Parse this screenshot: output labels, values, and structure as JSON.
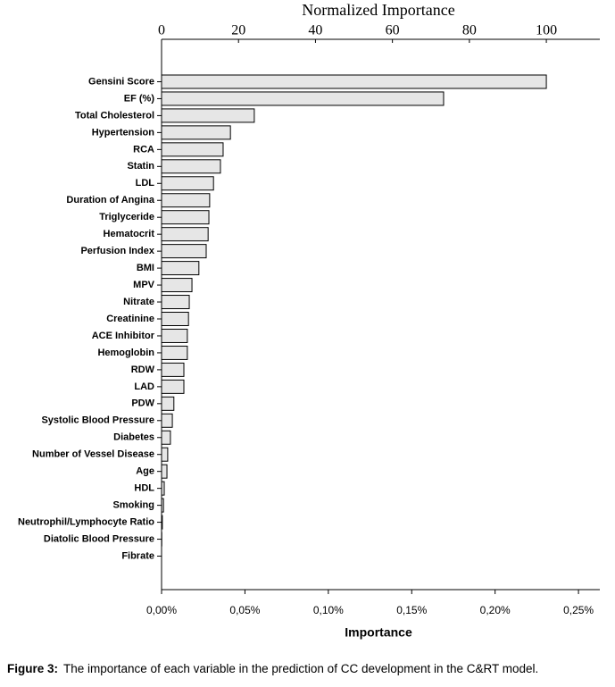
{
  "chart_data": {
    "type": "barh",
    "title": "Normalized Importance",
    "xlabel2": "Importance",
    "categories": [
      "Gensini Score",
      "EF (%)",
      "Total Cholesterol",
      "Hypertension",
      "RCA",
      "Statin",
      "LDL",
      "Duration of Angina",
      "Triglyceride",
      "Hematocrit",
      "Perfusion Index",
      "BMI",
      "MPV",
      "Nitrate",
      "Creatinine",
      "ACE Inhibitor",
      "Hemoglobin",
      "RDW",
      "LAD",
      "PDW",
      "Systolic Blood Pressure",
      "Diabetes",
      "Number of Vessel Disease",
      "Age",
      "HDL",
      "Smoking",
      "Neutrophil/Lymphocyte Ratio",
      "Diatolic Blood Pressure",
      "Fibrate"
    ],
    "values": [
      100,
      73.3,
      24.1,
      17.9,
      16.0,
      15.3,
      13.5,
      12.5,
      12.3,
      12.1,
      11.6,
      9.7,
      7.9,
      7.2,
      7.0,
      6.7,
      6.7,
      5.8,
      5.8,
      3.2,
      2.8,
      2.3,
      1.6,
      1.4,
      0.7,
      0.5,
      0.2,
      0.05,
      0
    ],
    "color": "#e6e6e6",
    "xlim": [
      0,
      113.9
    ],
    "xticks": [
      0,
      20,
      40,
      60,
      80,
      100
    ],
    "x2lim": [
      0,
      0.2628
    ],
    "x2ticks": [
      {
        "value": 0,
        "label": "0,00%"
      },
      {
        "value": 0.05,
        "label": "0,05%"
      },
      {
        "value": 0.1,
        "label": "0,10%"
      },
      {
        "value": 0.15,
        "label": "0,15%"
      },
      {
        "value": 0.2,
        "label": "0,20%"
      },
      {
        "value": 0.25,
        "label": "0,25%"
      }
    ]
  },
  "caption": {
    "label": "Figure 3:",
    "text": "The importance of each variable in the prediction of CC development in the C&RT model."
  }
}
